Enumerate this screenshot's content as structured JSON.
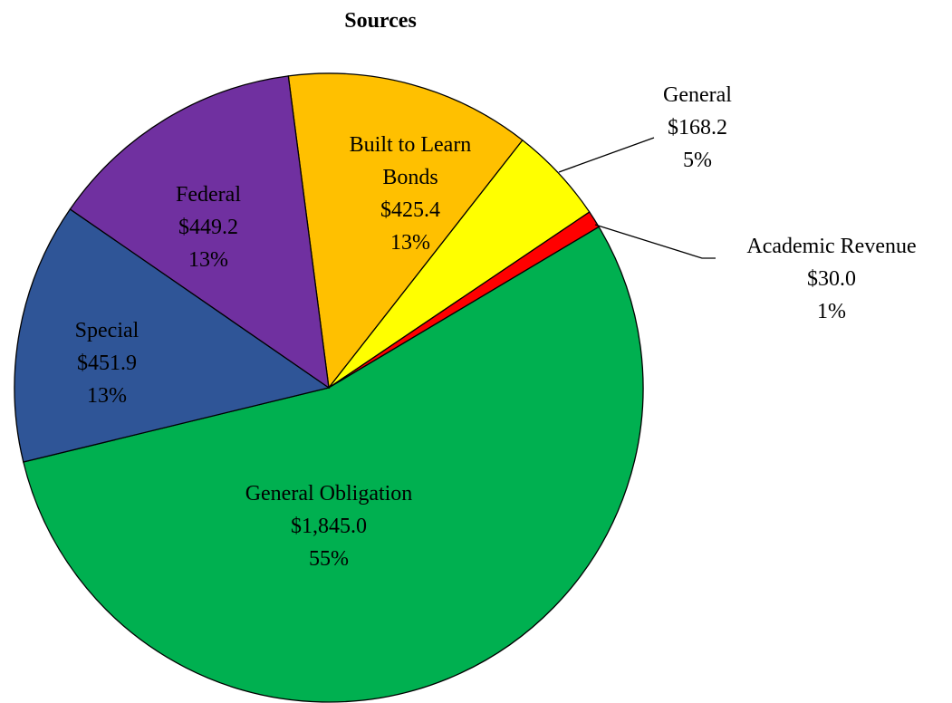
{
  "chart_data": {
    "type": "pie",
    "title": "Sources",
    "categories": [
      "Built to Learn Bonds",
      "General",
      "Academic Revenue",
      "General Obligation",
      "Special",
      "Federal"
    ],
    "values": [
      425.4,
      168.2,
      30.0,
      1845.0,
      451.9,
      449.2
    ],
    "value_labels": [
      "$425.4",
      "$168.2",
      "$30.0",
      "$1,845.0",
      "$451.9",
      "$449.2"
    ],
    "percents": [
      13,
      5,
      1,
      55,
      13,
      13
    ],
    "percent_labels": [
      "13%",
      "5%",
      "1%",
      "55%",
      "13%",
      "13%"
    ],
    "colors": [
      "#FFC000",
      "#FFFF00",
      "#FF0000",
      "#00B050",
      "#2F5597",
      "#7030A0"
    ]
  }
}
